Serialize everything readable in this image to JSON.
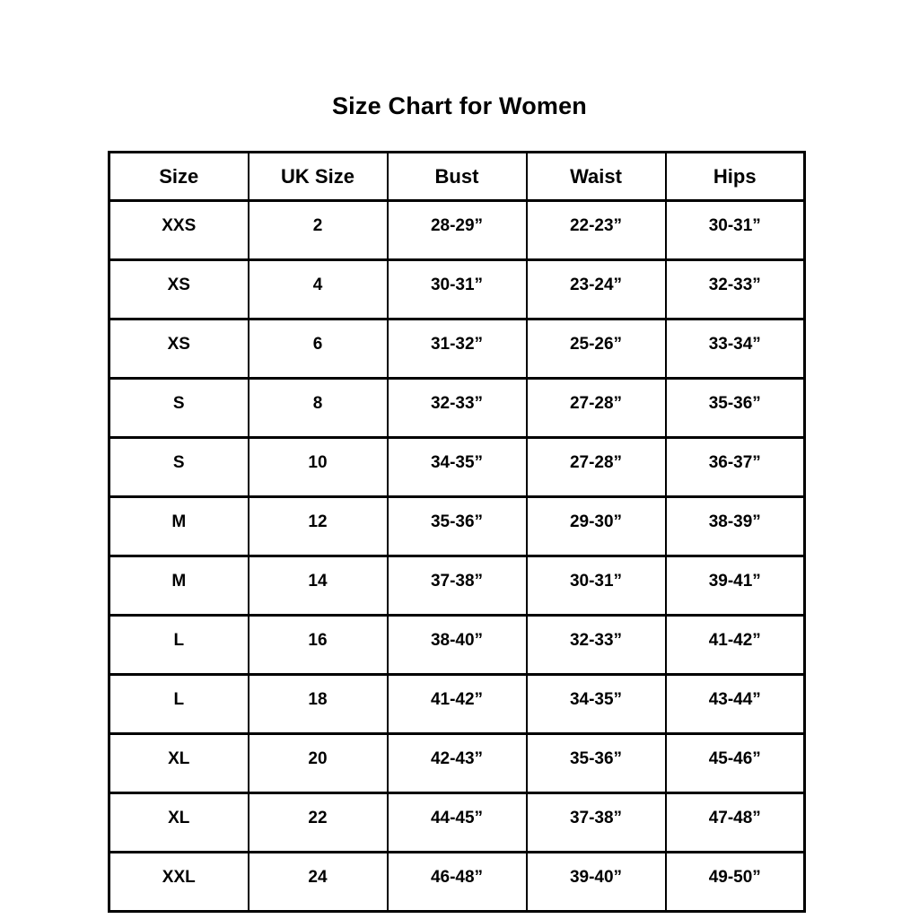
{
  "page": {
    "title": "Size Chart for Women",
    "background_color": "#ffffff",
    "text_color": "#000000",
    "border_color": "#000000"
  },
  "chart_data": {
    "type": "table",
    "title": "Size Chart for Women",
    "columns": [
      "Size",
      "UK Size",
      "Bust",
      "Waist",
      "Hips"
    ],
    "rows": [
      [
        "XXS",
        "2",
        "28-29”",
        "22-23”",
        "30-31”"
      ],
      [
        "XS",
        "4",
        "30-31”",
        "23-24”",
        "32-33”"
      ],
      [
        "XS",
        "6",
        "31-32”",
        "25-26”",
        "33-34”"
      ],
      [
        "S",
        "8",
        "32-33”",
        "27-28”",
        "35-36”"
      ],
      [
        "S",
        "10",
        "34-35”",
        "27-28”",
        "36-37”"
      ],
      [
        "M",
        "12",
        "35-36”",
        "29-30”",
        "38-39”"
      ],
      [
        "M",
        "14",
        "37-38”",
        "30-31”",
        "39-41”"
      ],
      [
        "L",
        "16",
        "38-40”",
        "32-33”",
        "41-42”"
      ],
      [
        "L",
        "18",
        "41-42”",
        "34-35”",
        "43-44”"
      ],
      [
        "XL",
        "20",
        "42-43”",
        "35-36”",
        "45-46”"
      ],
      [
        "XL",
        "22",
        "44-45”",
        "37-38”",
        "47-48”"
      ],
      [
        "XXL",
        "24",
        "46-48”",
        "39-40”",
        "49-50”"
      ]
    ]
  }
}
